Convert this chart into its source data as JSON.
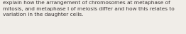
{
  "text": "explain how the arrangement of chromosomes at metaphase of\nmitosis, and metaphase I of meiosis differ and how this relates to\nvariation in the daughter cells.",
  "background_color": "#f0ede8",
  "text_color": "#3a3535",
  "font_size": 5.3,
  "figwidth": 2.62,
  "figheight": 0.49,
  "dpi": 100
}
